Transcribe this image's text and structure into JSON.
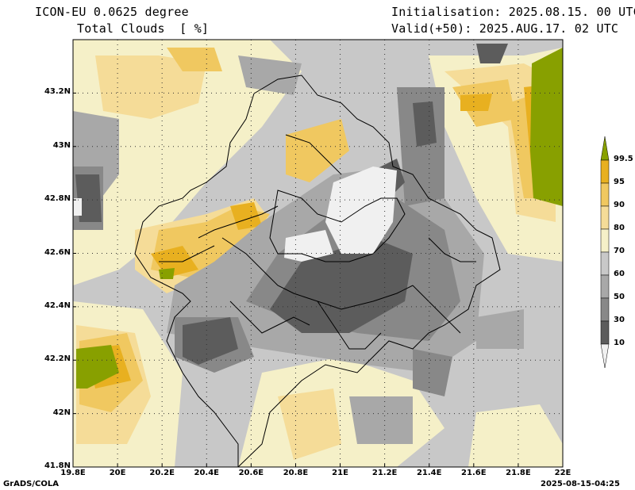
{
  "header": {
    "model": "ICON-EU 0.0625 degree",
    "field": "Total Clouds  [ %]",
    "init": "Initialisation: 2025.08.15. 00 UTC",
    "valid": "Valid(+50): 2025.AUG.17. 02 UTC"
  },
  "axes": {
    "lat_labels": [
      "43.2N",
      "43N",
      "42.8N",
      "42.6N",
      "42.4N",
      "42.2N",
      "42N",
      "41.8N"
    ],
    "lon_labels": [
      "19.8E",
      "20E",
      "20.2E",
      "20.4E",
      "20.6E",
      "20.8E",
      "21E",
      "21.2E",
      "21.4E",
      "21.6E",
      "21.8E",
      "22E"
    ]
  },
  "colorbar": {
    "levels": [
      "99.5",
      "95",
      "90",
      "80",
      "70",
      "60",
      "50",
      "30",
      "10"
    ],
    "colors": [
      "#88a000",
      "#e8b020",
      "#f0c860",
      "#f5dc98",
      "#f5f0c8",
      "#c8c8c8",
      "#a8a8a8",
      "#888888",
      "#5c5c5c",
      "#f0f0f0"
    ]
  },
  "footer": {
    "left": "GrADS/COLA",
    "right": "2025-08-15-04:25"
  }
}
